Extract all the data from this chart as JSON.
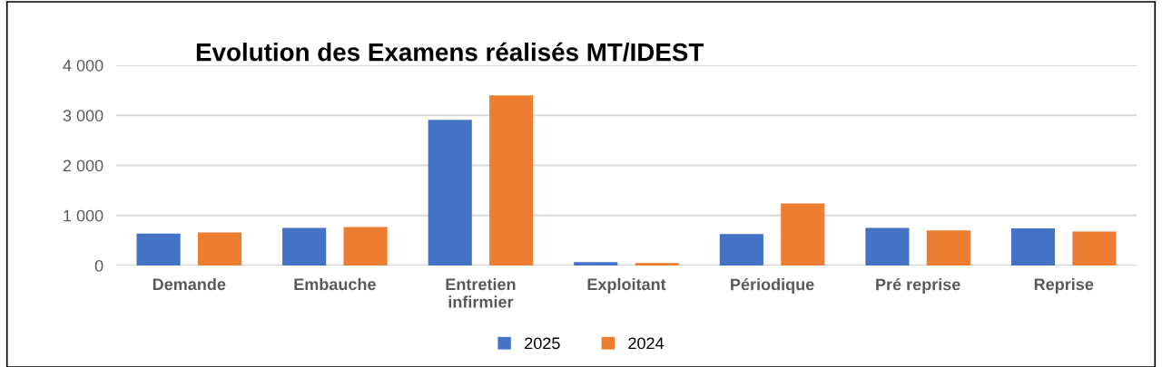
{
  "chart_data": {
    "type": "bar",
    "title": "Evolution des Examens réalisés MT/IDEST",
    "categories": [
      "Demande",
      "Embauche",
      "Entretien\ninfirmier",
      "Exploitant",
      "Périodique",
      "Pré reprise",
      "Reprise"
    ],
    "series": [
      {
        "name": "2025",
        "color": "#4472c4",
        "values": [
          640,
          750,
          2910,
          70,
          630,
          750,
          740
        ]
      },
      {
        "name": "2024",
        "color": "#ed7d31",
        "values": [
          660,
          770,
          3400,
          50,
          1240,
          700,
          680
        ]
      }
    ],
    "ylim": [
      0,
      4000
    ],
    "yticks": [
      {
        "value": 0,
        "label": "0"
      },
      {
        "value": 1000,
        "label": "1 000"
      },
      {
        "value": 2000,
        "label": "2 000"
      },
      {
        "value": 3000,
        "label": "3 000"
      },
      {
        "value": 4000,
        "label": "4 000"
      }
    ],
    "grid": "y",
    "legend": "bottom"
  }
}
